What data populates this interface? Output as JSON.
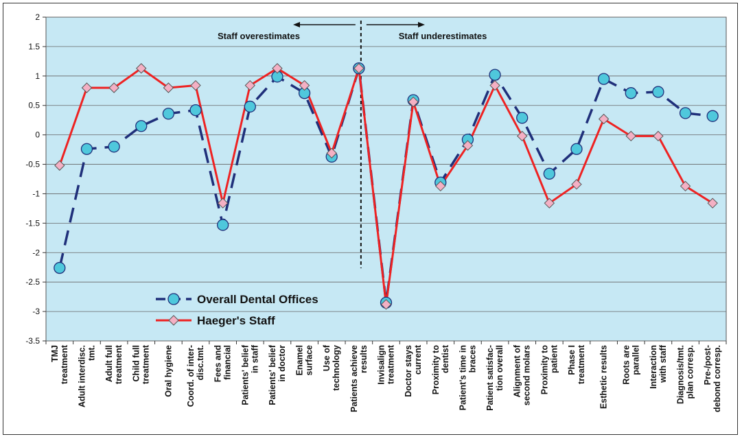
{
  "chart_data": {
    "type": "line",
    "ylim": [
      -3.5,
      2
    ],
    "yticks": [
      "2",
      "1.5",
      "1",
      "0.5",
      "0",
      "-0.5",
      "-1",
      "-1.5",
      "-2",
      "-2.5",
      "-3",
      "-3.5"
    ],
    "categories": [
      [
        "TMJ",
        "treatment"
      ],
      [
        "Adult interdisc.",
        "tmt."
      ],
      [
        "Adult full",
        "treatment"
      ],
      [
        "Child full",
        "treatment"
      ],
      [
        "Oral hygiene"
      ],
      [
        "Coord. of inter-",
        "disc.tmt."
      ],
      [
        "Fees and",
        "financial"
      ],
      [
        "Patients' belief",
        "in staff"
      ],
      [
        "Patients' belief",
        "in doctor"
      ],
      [
        "Enamel",
        "surface"
      ],
      [
        "Use of",
        "technology"
      ],
      [
        "Patients achieve",
        "results"
      ],
      [
        "Invisalign",
        "treatment"
      ],
      [
        "Doctor stays",
        "current"
      ],
      [
        "Proximity to",
        "dentist"
      ],
      [
        "Patient's time in",
        "braces"
      ],
      [
        "Patient satisfac-",
        "tion overall"
      ],
      [
        "Alignment of",
        "second molars"
      ],
      [
        "Proximity to",
        "patient"
      ],
      [
        "Phase I",
        "treatment"
      ],
      [
        "Esthetic results"
      ],
      [
        "Roots are",
        "parallel"
      ],
      [
        "Interaction",
        "with staff"
      ],
      [
        "Diagnosis/tmt.",
        "plan corresp."
      ],
      [
        "Pre-/post-",
        "debond corresp."
      ]
    ],
    "series": [
      {
        "name": "Overall Dental Offices",
        "color": "#1f2f7a",
        "marker_color": "#4fc8dc",
        "style": "dashed",
        "values": [
          -2.26,
          -0.24,
          -0.2,
          0.15,
          0.36,
          0.42,
          -1.53,
          0.48,
          0.99,
          0.71,
          -0.37,
          1.13,
          -2.85,
          0.59,
          -0.81,
          -0.08,
          1.02,
          0.29,
          -0.66,
          -0.24,
          0.95,
          0.71,
          0.73,
          0.37,
          0.32
        ]
      },
      {
        "name": "Haeger's Staff",
        "color": "#ee2222",
        "marker_color": "#f4b0c4",
        "style": "solid",
        "values": [
          -0.52,
          0.8,
          0.8,
          1.13,
          0.8,
          0.84,
          -1.16,
          0.84,
          1.13,
          0.84,
          -0.31,
          1.13,
          -2.88,
          0.56,
          -0.87,
          -0.18,
          0.84,
          -0.02,
          -1.16,
          -0.84,
          0.27,
          -0.02,
          -0.02,
          -0.87,
          -1.16
        ]
      }
    ],
    "annotations": {
      "left": "Staff overestimates",
      "right": "Staff underestimates"
    },
    "plot_background": "#c6e8f4",
    "grid": true
  }
}
